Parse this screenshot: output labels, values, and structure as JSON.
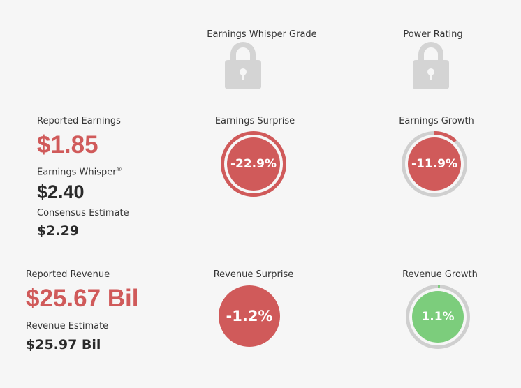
{
  "header": {
    "grade_label": "Earnings Whisper Grade",
    "power_label": "Power Rating",
    "grade_icon": "lock-icon",
    "power_icon": "lock-icon"
  },
  "earnings": {
    "reported_label": "Reported Earnings",
    "reported_value": "$1.85",
    "whisper_label": "Earnings Whisper",
    "whisper_mark": "®",
    "whisper_value": "$2.40",
    "consensus_label": "Consensus Estimate",
    "consensus_value": "$2.29",
    "surprise_label": "Earnings Surprise",
    "surprise_value": "-22.9%",
    "growth_label": "Earnings Growth",
    "growth_value": "-11.9%",
    "growth_fraction": 0.119
  },
  "revenue": {
    "reported_label": "Reported Revenue",
    "reported_value": "$25.67 Bil",
    "estimate_label": "Revenue Estimate",
    "estimate_value": "$25.97 Bil",
    "surprise_label": "Revenue Surprise",
    "surprise_value": "-1.2%",
    "growth_label": "Revenue Growth",
    "growth_value": "1.1%",
    "growth_fraction": 0.011
  },
  "colors": {
    "negative": "#d05a5a",
    "positive": "#7ccd7c",
    "ring": "#cfcfcf",
    "lock": "#d4d4d4"
  }
}
